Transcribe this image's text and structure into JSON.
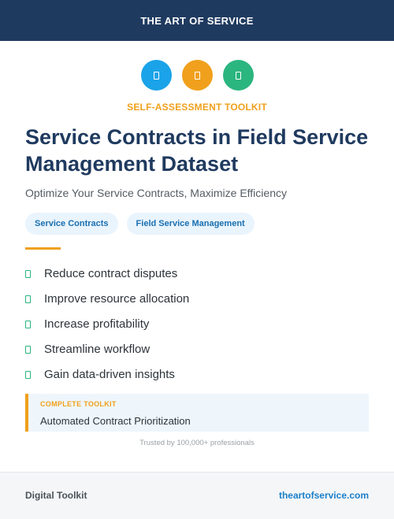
{
  "header": {
    "brand": "THE ART OF SERVICE"
  },
  "icons": [
    {
      "name": "document-icon",
      "color": "#1aa3e8"
    },
    {
      "name": "document-icon",
      "color": "#f0a01c"
    },
    {
      "name": "document-icon",
      "color": "#2bb57f"
    }
  ],
  "kit_label": "SELF-ASSESSMENT TOOLKIT",
  "title": "Service Contracts in Field Service Management Dataset",
  "subtitle": "Optimize Your Service Contracts, Maximize Efficiency",
  "tags": [
    "Service Contracts",
    "Field Service Management"
  ],
  "benefits": [
    "Reduce contract disputes",
    "Improve resource allocation",
    "Increase profitability",
    "Streamline workflow",
    "Gain data-driven insights"
  ],
  "callout": {
    "label": "COMPLETE TOOLKIT",
    "text": "Automated Contract Prioritization"
  },
  "trusted": "Trusted by 100,000+ professionals",
  "footer": {
    "left": "Digital Toolkit",
    "right": "theartofservice.com"
  },
  "colors": {
    "navy": "#1f3a5f",
    "accent_orange": "#f0a01c",
    "accent_blue": "#1aa3e8",
    "accent_green": "#2bb57f",
    "link_blue": "#1a7fc8"
  }
}
